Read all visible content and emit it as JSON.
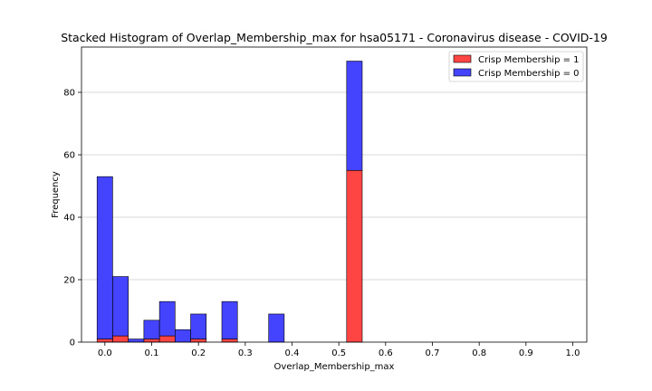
{
  "chart_data": {
    "type": "bar",
    "title": "Stacked Histogram of Overlap_Membership_max for hsa05171 - Coronavirus disease - COVID-19",
    "xlabel": "Overlap_Membership_max",
    "ylabel": "Frequency",
    "xlim": [
      -0.05,
      1.03
    ],
    "ylim": [
      0,
      94.5
    ],
    "xticks": [
      0.0,
      0.1,
      0.2,
      0.3,
      0.4,
      0.5,
      0.6,
      0.7,
      0.8,
      0.9,
      1.0
    ],
    "xtick_labels": [
      "0.0",
      "0.1",
      "0.2",
      "0.3",
      "0.4",
      "0.5",
      "0.6",
      "0.7",
      "0.8",
      "0.9",
      "1.0"
    ],
    "yticks": [
      0,
      20,
      40,
      60,
      80
    ],
    "ytick_labels": [
      "0",
      "20",
      "40",
      "60",
      "80"
    ],
    "grid": "y",
    "legend_position": "top-right",
    "bin_width": 0.0333,
    "bin_starts": [
      -0.0167,
      0.0167,
      0.05,
      0.0833,
      0.1167,
      0.15,
      0.1833,
      0.2167,
      0.25,
      0.2833,
      0.3167,
      0.35,
      0.3833,
      0.4167,
      0.45,
      0.4833,
      0.5167,
      0.55,
      0.5833,
      0.6167,
      0.65,
      0.6833,
      0.7167,
      0.75,
      0.7833,
      0.8167,
      0.85,
      0.8833,
      0.9167,
      0.95,
      0.9833
    ],
    "series": [
      {
        "name": "Crisp Membership = 1",
        "color": "#ff4444",
        "values": [
          1,
          2,
          0,
          1,
          2,
          0,
          1,
          0,
          1,
          0,
          0,
          0,
          0,
          0,
          0,
          0,
          55,
          0,
          0,
          0,
          0,
          0,
          0,
          0,
          0,
          0,
          0,
          0,
          0,
          0,
          0
        ]
      },
      {
        "name": "Crisp Membership = 0",
        "color": "#4444ff",
        "values": [
          52,
          19,
          1,
          6,
          11,
          4,
          8,
          0,
          12,
          0,
          0,
          9,
          0,
          0,
          0,
          0,
          35,
          0,
          0,
          0,
          0,
          0,
          0,
          0,
          0,
          0,
          0,
          0,
          0,
          0,
          0
        ]
      }
    ]
  }
}
